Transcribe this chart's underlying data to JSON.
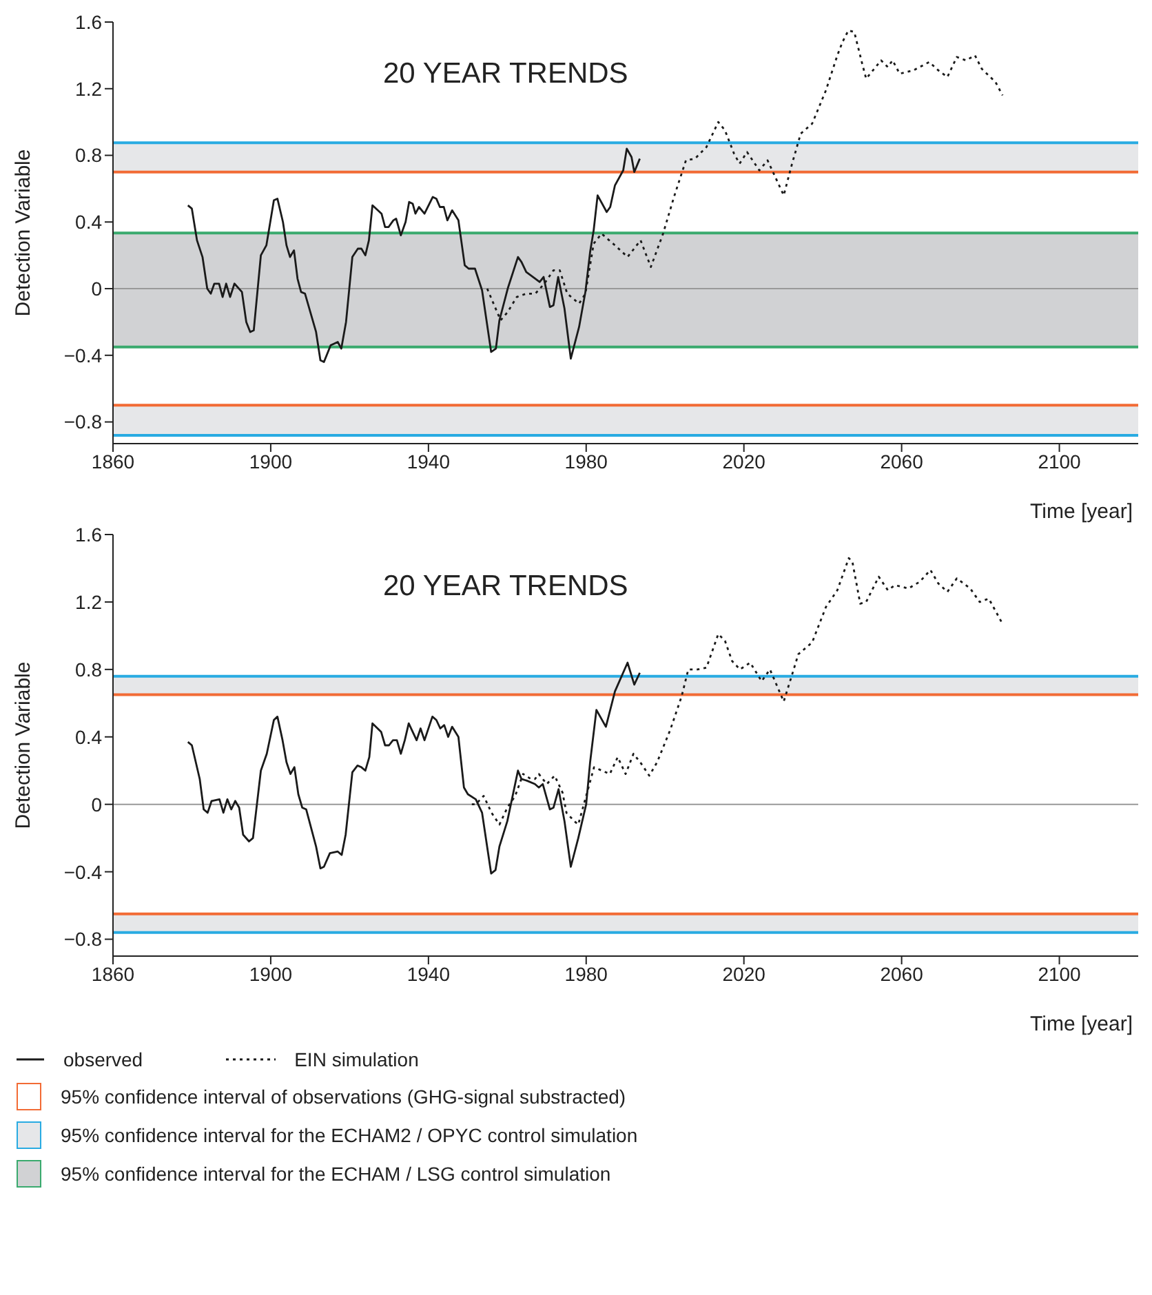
{
  "chart_data": [
    {
      "type": "line",
      "title": "20 YEAR TRENDS",
      "xlabel": "Time [year]",
      "ylabel": "Detection Variable",
      "xlim": [
        1860,
        2120
      ],
      "xticks": [
        1860,
        1900,
        1940,
        1980,
        2020,
        2060,
        2100
      ],
      "ylim": [
        -0.93,
        1.6
      ],
      "yticks": [
        1.6,
        1.2,
        0.8,
        0.4,
        0,
        -0.4,
        -0.8
      ],
      "legend": "bottom",
      "series": [
        {
          "name": "observed",
          "color": "#1a1a1a",
          "line_style": "solid",
          "x": [
            1879,
            1880,
            1881.3,
            1882.7,
            1883.9,
            1884.8,
            1885.7,
            1886.9,
            1887.8,
            1888.7,
            1889.7,
            1890.8,
            1892.7,
            1893.8,
            1894.8,
            1895.7,
            1897.5,
            1898.9,
            1900.8,
            1901.7,
            1903.1,
            1904,
            1904.9,
            1905.9,
            1906.8,
            1907.7,
            1908.7,
            1911.5,
            1912.6,
            1913.5,
            1915.2,
            1917,
            1917.9,
            1919.1,
            1920.7,
            1922.1,
            1923,
            1924,
            1924.9,
            1925.8,
            1928.1,
            1929,
            1929.9,
            1931.1,
            1931.8,
            1933,
            1934.2,
            1935.1,
            1936,
            1936.7,
            1937.6,
            1939,
            1941.1,
            1942,
            1942.9,
            1943.9,
            1944.8,
            1946,
            1947.6,
            1949.2,
            1950.2,
            1951.8,
            1953.6,
            1955.9,
            1957.1,
            1958,
            1960.1,
            1962.7,
            1963.6,
            1964.8,
            1967.1,
            1968.2,
            1969.2,
            1970.8,
            1971.7,
            1972.9,
            1974.5,
            1976.1,
            1978.2,
            1979.8,
            1981,
            1981.9,
            1982.9,
            1985.2,
            1986.1,
            1987.3,
            1989.4,
            1990.3,
            1991.5,
            1992.2,
            1993.6
          ],
          "values": [
            0.5,
            0.48,
            0.29,
            0.19,
            0.0,
            -0.03,
            0.03,
            0.03,
            -0.05,
            0.03,
            -0.05,
            0.03,
            -0.02,
            -0.2,
            -0.26,
            -0.25,
            0.2,
            0.26,
            0.53,
            0.54,
            0.4,
            0.26,
            0.19,
            0.23,
            0.06,
            -0.02,
            -0.03,
            -0.26,
            -0.43,
            -0.44,
            -0.34,
            -0.32,
            -0.36,
            -0.2,
            0.19,
            0.24,
            0.24,
            0.2,
            0.29,
            0.5,
            0.45,
            0.37,
            0.37,
            0.41,
            0.42,
            0.32,
            0.4,
            0.52,
            0.51,
            0.45,
            0.49,
            0.45,
            0.55,
            0.54,
            0.49,
            0.49,
            0.41,
            0.47,
            0.41,
            0.14,
            0.12,
            0.12,
            -0.01,
            -0.38,
            -0.36,
            -0.19,
            0.0,
            0.19,
            0.16,
            0.1,
            0.06,
            0.04,
            0.07,
            -0.11,
            -0.1,
            0.07,
            -0.12,
            -0.42,
            -0.23,
            -0.02,
            0.22,
            0.35,
            0.56,
            0.46,
            0.49,
            0.62,
            0.71,
            0.84,
            0.79,
            0.7,
            0.78
          ]
        },
        {
          "name": "EIN simulation",
          "color": "#1a1a1a",
          "line_style": "dotted",
          "x": [
            1954.9,
            1958.3,
            1960.1,
            1962.4,
            1964.8,
            1967.1,
            1969.4,
            1971.7,
            1973.3,
            1975.2,
            1978.2,
            1979.8,
            1981.9,
            1983.9,
            1987.3,
            1990.5,
            1993.8,
            1996.4,
            1999.5,
            2002.4,
            2005.3,
            2007.6,
            2010.5,
            2013.5,
            2015.2,
            2017.5,
            2018.9,
            2020.8,
            2023.9,
            2026,
            2030.1,
            2032.1,
            2034.4,
            2037.3,
            2040.8,
            2043.7,
            2045,
            2046.5,
            2048,
            2050,
            2051,
            2054.8,
            2056.5,
            2057.7,
            2059.5,
            2063,
            2067,
            2069.3,
            2071.6,
            2074,
            2076.3,
            2078.6,
            2080.3,
            2083.8,
            2085.6
          ],
          "values": [
            0.0,
            -0.19,
            -0.14,
            -0.05,
            -0.03,
            -0.03,
            0.03,
            0.11,
            0.11,
            -0.03,
            -0.09,
            -0.03,
            0.27,
            0.33,
            0.26,
            0.19,
            0.29,
            0.13,
            0.33,
            0.56,
            0.77,
            0.78,
            0.85,
            1.0,
            0.95,
            0.81,
            0.75,
            0.82,
            0.71,
            0.77,
            0.56,
            0.74,
            0.93,
            0.99,
            1.19,
            1.4,
            1.48,
            1.55,
            1.54,
            1.35,
            1.26,
            1.37,
            1.33,
            1.37,
            1.29,
            1.31,
            1.36,
            1.31,
            1.27,
            1.39,
            1.37,
            1.4,
            1.32,
            1.24,
            1.16
          ]
        }
      ],
      "bands": [
        {
          "axis": "y",
          "from": 0.7,
          "to": 0.876,
          "color": "#e6e7e9"
        },
        {
          "axis": "y",
          "from": -0.35,
          "to": 0.334,
          "color": "#d1d2d4"
        },
        {
          "axis": "y",
          "from": -0.88,
          "to": -0.7,
          "color": "#e6e7e9"
        }
      ],
      "ref_lines": [
        {
          "axis": "y",
          "value": 0.7,
          "color": "#f26b35",
          "label": "95% confidence interval of observations (GHG-signal substracted)"
        },
        {
          "axis": "y",
          "value": 0.876,
          "color": "#29abe2",
          "label": "95% confidence interval for the ECHAM2 / OPYC control simulation"
        },
        {
          "axis": "y",
          "value": 0.334,
          "color": "#3aaa6e",
          "label": "95% confidence interval for the ECHAM / LSG control simulation"
        },
        {
          "axis": "y",
          "value": -0.35,
          "color": "#3aaa6e"
        },
        {
          "axis": "y",
          "value": -0.7,
          "color": "#f26b35"
        },
        {
          "axis": "y",
          "value": -0.88,
          "color": "#29abe2"
        },
        {
          "axis": "y",
          "value": 0,
          "color": "#999999"
        }
      ]
    },
    {
      "type": "line",
      "title": "20 YEAR TRENDS",
      "xlabel": "Time [year]",
      "ylabel": "Detection Variable",
      "xlim": [
        1860,
        2120
      ],
      "xticks": [
        1860,
        1900,
        1940,
        1980,
        2020,
        2060,
        2100
      ],
      "ylim": [
        -0.9,
        1.6
      ],
      "yticks": [
        1.6,
        1.2,
        0.8,
        0.4,
        0,
        -0.4,
        -0.8
      ],
      "series": [
        {
          "color": "#1a1a1a",
          "line_style": "solid",
          "x": [
            1879,
            1880,
            1882,
            1883,
            1884,
            1885,
            1887,
            1888,
            1889,
            1890,
            1891,
            1892,
            1893,
            1894.5,
            1895.5,
            1897.5,
            1899,
            1900.8,
            1901.7,
            1903,
            1904,
            1905,
            1906,
            1907,
            1908,
            1909,
            1911.5,
            1912.6,
            1913.5,
            1915,
            1917,
            1918,
            1919,
            1920.7,
            1922,
            1923,
            1924,
            1925,
            1925.8,
            1928,
            1929,
            1930,
            1931,
            1932,
            1933,
            1934,
            1935,
            1936,
            1937,
            1938,
            1939,
            1941,
            1942,
            1943,
            1944,
            1945,
            1946,
            1947.6,
            1949,
            1950,
            1952,
            1953.6,
            1955.9,
            1957,
            1958,
            1960,
            1962.7,
            1963.6,
            1965,
            1967,
            1968,
            1969,
            1970.8,
            1971.7,
            1973,
            1974.5,
            1976.1,
            1978,
            1980,
            1981,
            1982.6,
            1985,
            1987.3,
            1990.5,
            1992.2,
            1993.6
          ],
          "values": [
            0.37,
            0.35,
            0.15,
            -0.03,
            -0.05,
            0.02,
            0.03,
            -0.05,
            0.03,
            -0.03,
            0.02,
            -0.02,
            -0.18,
            -0.22,
            -0.2,
            0.2,
            0.3,
            0.5,
            0.52,
            0.38,
            0.25,
            0.18,
            0.22,
            0.06,
            -0.02,
            -0.03,
            -0.25,
            -0.38,
            -0.37,
            -0.29,
            -0.28,
            -0.3,
            -0.18,
            0.19,
            0.23,
            0.22,
            0.2,
            0.28,
            0.48,
            0.43,
            0.35,
            0.35,
            0.38,
            0.38,
            0.3,
            0.38,
            0.48,
            0.43,
            0.38,
            0.45,
            0.38,
            0.52,
            0.5,
            0.45,
            0.47,
            0.4,
            0.46,
            0.4,
            0.1,
            0.06,
            0.03,
            -0.05,
            -0.41,
            -0.39,
            -0.25,
            -0.1,
            0.2,
            0.15,
            0.14,
            0.12,
            0.1,
            0.12,
            -0.03,
            -0.02,
            0.09,
            -0.1,
            -0.37,
            -0.2,
            0.0,
            0.25,
            0.56,
            0.46,
            0.67,
            0.84,
            0.71,
            0.78
          ]
        },
        {
          "color": "#1a1a1a",
          "line_style": "dotted",
          "x": [
            1951,
            1952,
            1954,
            1955,
            1956,
            1958,
            1960,
            1962,
            1964,
            1966,
            1967,
            1968,
            1970,
            1972,
            1974,
            1975,
            1977,
            1978,
            1980,
            1982,
            1984,
            1986,
            1988,
            1990,
            1992,
            1994,
            1996,
            1998,
            2001.3,
            2004.2,
            2005.9,
            2008.2,
            2010.5,
            2013.5,
            2015.2,
            2017,
            2019,
            2021.6,
            2024.5,
            2026.6,
            2030.1,
            2032.1,
            2033.8,
            2037.3,
            2040.8,
            2043.7,
            2046.6,
            2047.5,
            2049.5,
            2051,
            2054.2,
            2056.5,
            2058.3,
            2061.7,
            2064.6,
            2067.3,
            2069.3,
            2071.6,
            2074,
            2077.4,
            2079.8,
            2082.1,
            2085.6
          ],
          "values": [
            0.0,
            0.0,
            0.05,
            0.0,
            -0.05,
            -0.12,
            -0.02,
            0.05,
            0.18,
            0.15,
            0.15,
            0.18,
            0.12,
            0.17,
            0.07,
            -0.05,
            -0.1,
            -0.12,
            0.05,
            0.22,
            0.2,
            0.18,
            0.28,
            0.18,
            0.3,
            0.24,
            0.17,
            0.25,
            0.44,
            0.64,
            0.8,
            0.8,
            0.81,
            1.01,
            0.97,
            0.85,
            0.8,
            0.84,
            0.73,
            0.8,
            0.61,
            0.76,
            0.89,
            0.96,
            1.17,
            1.27,
            1.46,
            1.44,
            1.19,
            1.2,
            1.35,
            1.27,
            1.3,
            1.28,
            1.32,
            1.39,
            1.31,
            1.26,
            1.34,
            1.28,
            1.2,
            1.22,
            1.07
          ]
        }
      ],
      "bands": [
        {
          "axis": "y",
          "from": 0.65,
          "to": 0.76,
          "color": "#e6e7e9"
        },
        {
          "axis": "y",
          "from": -0.76,
          "to": -0.65,
          "color": "#e6e7e9"
        }
      ],
      "ref_lines": [
        {
          "axis": "y",
          "value": 0.76,
          "color": "#29abe2"
        },
        {
          "axis": "y",
          "value": 0.65,
          "color": "#f26b35"
        },
        {
          "axis": "y",
          "value": -0.65,
          "color": "#f26b35"
        },
        {
          "axis": "y",
          "value": -0.76,
          "color": "#29abe2"
        },
        {
          "axis": "y",
          "value": 0,
          "color": "#999999"
        }
      ]
    }
  ]
}
